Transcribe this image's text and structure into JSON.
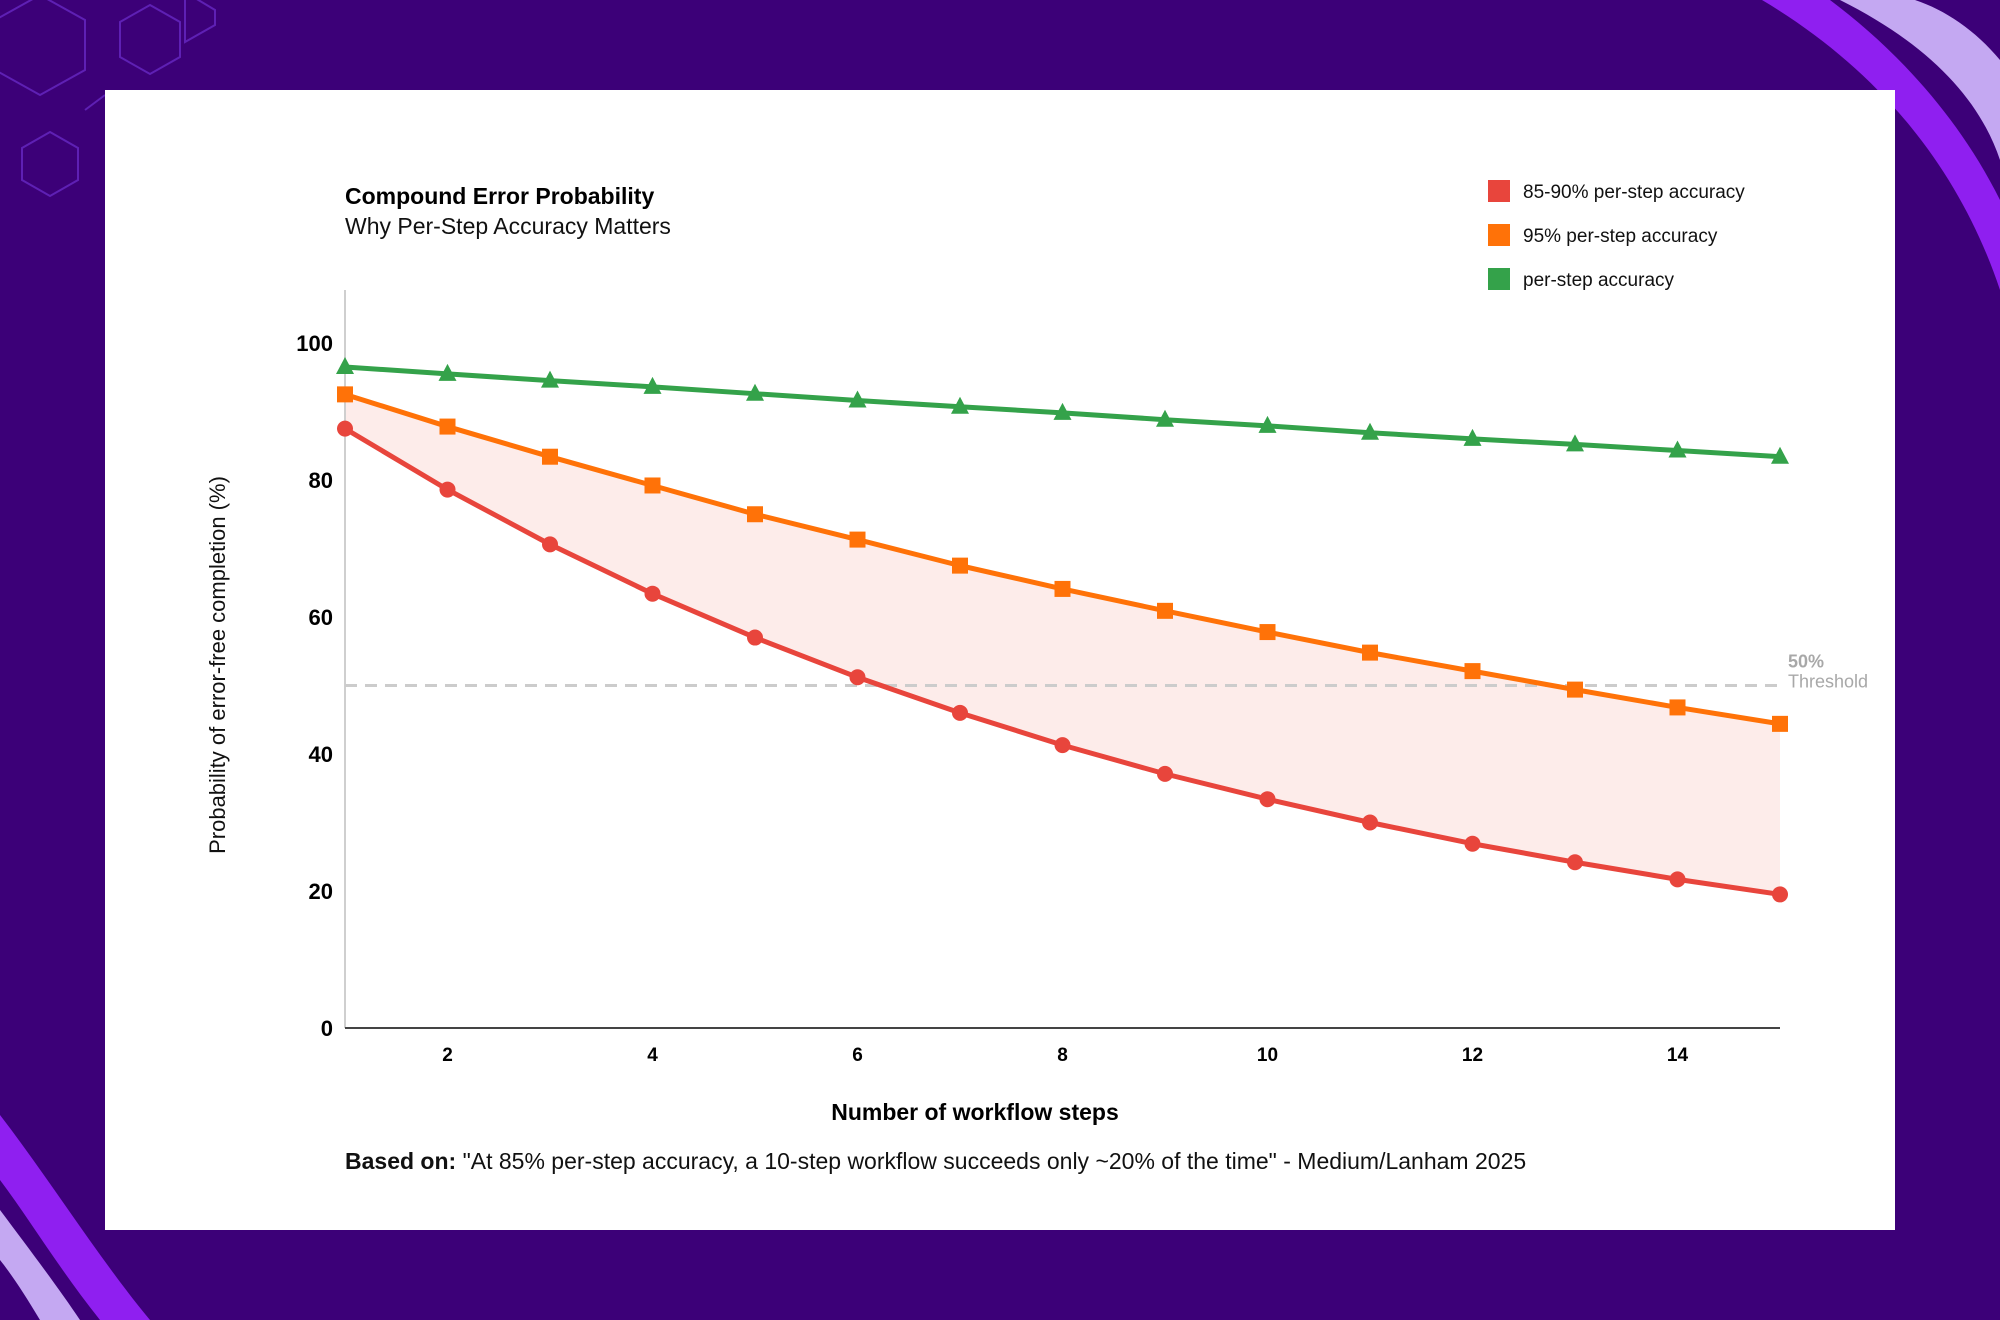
{
  "colors": {
    "background": "#3c0078",
    "card": "#ffffff",
    "accent_purple": "#8f1ff0",
    "accent_lavender": "#c4a8f2",
    "series_red": "#e8453c",
    "series_orange": "#ff7208",
    "series_green": "#34a24a",
    "band_fill": "#fdecea",
    "threshold": "#cccccc"
  },
  "footnote": {
    "label": "Based on:",
    "text": "\"At 85% per-step accuracy, a 10-step workflow succeeds only ~20% of the time\" - Medium/Lanham 2025"
  },
  "chart_data": {
    "type": "line",
    "title": "Compound Error Probability",
    "subtitle": "Why Per-Step Accuracy Matters",
    "xlabel": "Number of workflow steps",
    "ylabel": "Probability of error-free completion (%)",
    "xlim": [
      1,
      15
    ],
    "ylim": [
      0,
      100
    ],
    "xticks": [
      2,
      4,
      6,
      8,
      10,
      12,
      14
    ],
    "yticks": [
      0,
      20,
      40,
      60,
      80,
      100
    ],
    "grid": false,
    "legend_position": "top-right",
    "x": [
      1,
      2,
      3,
      4,
      5,
      6,
      7,
      8,
      9,
      10,
      11,
      12,
      13,
      14,
      15
    ],
    "series": [
      {
        "name": "85-90% per-step accuracy",
        "marker": "circle",
        "color": "#e8453c",
        "values": [
          87.5,
          78.6,
          70.6,
          63.4,
          57.0,
          51.2,
          46.0,
          41.3,
          37.1,
          33.4,
          30.0,
          26.9,
          24.2,
          21.7,
          19.5
        ]
      },
      {
        "name": "95% per-step accuracy",
        "marker": "square",
        "color": "#ff7208",
        "values": [
          92.5,
          87.8,
          83.4,
          79.2,
          75.0,
          71.3,
          67.5,
          64.1,
          60.9,
          57.8,
          54.8,
          52.1,
          49.4,
          46.8,
          44.4
        ]
      },
      {
        "name": "per-step accuracy",
        "marker": "triangle",
        "color": "#34a24a",
        "values": [
          96.5,
          95.5,
          94.5,
          93.6,
          92.6,
          91.6,
          90.7,
          89.8,
          88.8,
          87.9,
          86.9,
          86.0,
          85.2,
          84.3,
          83.4
        ]
      }
    ],
    "shaded_band": {
      "between": [
        "85-90% per-step accuracy",
        "95% per-step accuracy"
      ],
      "color": "#fdecea"
    },
    "threshold": {
      "value": 50,
      "value_label": "50%",
      "label": "Threshold",
      "style": "dashed"
    }
  }
}
